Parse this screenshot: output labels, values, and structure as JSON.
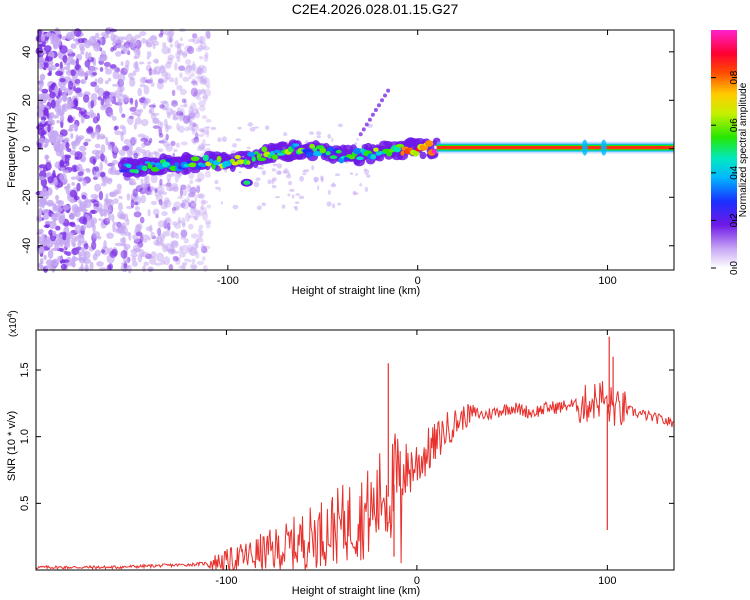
{
  "title": "C2E4.2026.028.01.15.G27",
  "colors": {
    "line": "#e8302c",
    "frame": "#000000",
    "signal_low": "#7b2ee6"
  },
  "chart_data": [
    {
      "type": "heatmap",
      "xlabel": "Height of straight line (km)",
      "ylabel": "Frequency (Hz)",
      "xlim": [
        -200,
        135
      ],
      "ylim": [
        -50,
        49
      ],
      "x_ticks": [
        -100,
        0,
        100
      ],
      "x_tick_labels": [
        "-100",
        "0",
        "100"
      ],
      "y_ticks": [
        -40,
        -20,
        0,
        20,
        40
      ],
      "y_tick_labels": [
        "-40",
        "-20",
        "0",
        "20",
        "40"
      ],
      "colorbar": {
        "label": "Normalized spectral amplitude",
        "range": [
          0,
          1
        ],
        "ticks": [
          0.0,
          0.2,
          0.4,
          0.6,
          0.8
        ],
        "tick_labels": [
          "0.0",
          "0.2",
          "0.4",
          "0.6",
          "0.8"
        ]
      },
      "carrier": {
        "path": [
          [
            -155,
            -8
          ],
          [
            -120,
            -6
          ],
          [
            -95,
            -5
          ],
          [
            -80,
            -2
          ],
          [
            -60,
            0
          ],
          [
            -40,
            -3
          ],
          [
            -25,
            -2
          ],
          [
            -10,
            0
          ],
          [
            0,
            0
          ],
          [
            10,
            0.5
          ],
          [
            135,
            0.5
          ]
        ],
        "amplitude": [
          0.35,
          0.45,
          0.55,
          0.5,
          0.45,
          0.4,
          0.5,
          0.6,
          0.8,
          0.9,
          0.95
        ]
      },
      "noise_region": [
        -200,
        -115
      ]
    },
    {
      "type": "line",
      "xlabel": "Height of straight line (km)",
      "ylabel": "SNR (10 * v/v)",
      "scale_label": "(x10",
      "scale_exp": "4",
      "scale_close": ")",
      "xlim": [
        -200,
        135
      ],
      "ylim": [
        0,
        1.8
      ],
      "x_ticks": [
        -100,
        0,
        100
      ],
      "x_tick_labels": [
        "-100",
        "0",
        "100"
      ],
      "y_ticks": [
        0.5,
        1.0,
        1.5
      ],
      "y_tick_labels": [
        "0.5",
        "1.0",
        "1.5"
      ],
      "series": [
        {
          "name": "SNR",
          "x": [
            -200,
            -180,
            -160,
            -140,
            -120,
            -110,
            -100,
            -90,
            -80,
            -70,
            -60,
            -50,
            -40,
            -30,
            -22,
            -18,
            -15,
            -10,
            -5,
            0,
            5,
            10,
            15,
            20,
            25,
            30,
            35,
            40,
            45,
            50,
            55,
            60,
            65,
            70,
            75,
            80,
            85,
            90,
            95,
            98,
            100,
            102,
            105,
            110,
            115,
            120,
            125,
            130,
            135
          ],
          "y": [
            0.02,
            0.02,
            0.02,
            0.03,
            0.04,
            0.05,
            0.07,
            0.1,
            0.13,
            0.16,
            0.22,
            0.28,
            0.34,
            0.4,
            0.45,
            0.6,
            0.55,
            0.7,
            0.75,
            0.8,
            0.88,
            0.95,
            1.05,
            1.1,
            1.15,
            1.18,
            1.16,
            1.18,
            1.2,
            1.22,
            1.2,
            1.18,
            1.2,
            1.22,
            1.22,
            1.24,
            1.23,
            1.25,
            1.28,
            1.3,
            1.2,
            1.24,
            1.2,
            1.2,
            1.18,
            1.16,
            1.14,
            1.12,
            1.1
          ],
          "spikes": [
            [
              -15,
              1.55
            ],
            [
              -12,
              0.1
            ],
            [
              100,
              0.3
            ],
            [
              101,
              1.75
            ],
            [
              103,
              1.6
            ]
          ]
        }
      ]
    }
  ]
}
